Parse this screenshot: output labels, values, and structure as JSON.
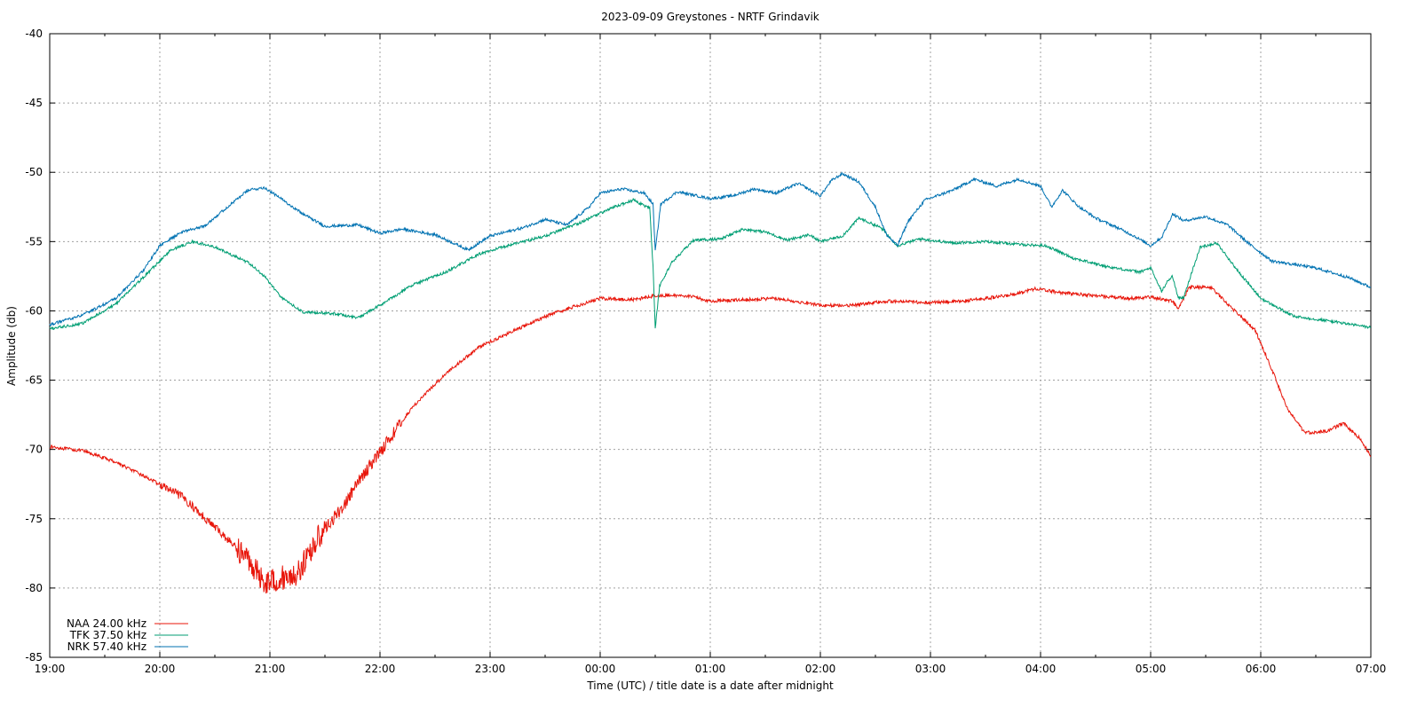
{
  "chart_data": {
    "type": "line",
    "title": "2023-09-09 Greystones - NRTF Grindavik",
    "xlabel": "Time (UTC) / title date is a date after midnight",
    "ylabel": "Amplitude (db)",
    "x_unit": "hours UTC",
    "xlim": [
      19,
      31
    ],
    "ylim": [
      -85,
      -40
    ],
    "x_ticks": [
      "19:00",
      "20:00",
      "21:00",
      "22:00",
      "23:00",
      "00:00",
      "01:00",
      "02:00",
      "03:00",
      "04:00",
      "05:00",
      "06:00",
      "07:00"
    ],
    "y_ticks": [
      "-40",
      "-45",
      "-50",
      "-55",
      "-60",
      "-65",
      "-70",
      "-75",
      "-80",
      "-85"
    ],
    "grid": true,
    "legend_position": "bottom-left",
    "series": [
      {
        "name": "NAA 24.00 kHz",
        "color": "#e8150a",
        "points": [
          [
            19.0,
            -69.8
          ],
          [
            19.3,
            -70.1
          ],
          [
            19.6,
            -70.9
          ],
          [
            19.9,
            -72.1
          ],
          [
            20.2,
            -73.4
          ],
          [
            20.5,
            -75.6
          ],
          [
            20.8,
            -77.9
          ],
          [
            20.95,
            -79.6
          ],
          [
            21.1,
            -79.3
          ],
          [
            21.25,
            -79.0
          ],
          [
            21.45,
            -76.2
          ],
          [
            21.65,
            -74.3
          ],
          [
            21.85,
            -71.8
          ],
          [
            22.05,
            -69.6
          ],
          [
            22.3,
            -66.9
          ],
          [
            22.6,
            -64.5
          ],
          [
            22.9,
            -62.6
          ],
          [
            23.2,
            -61.5
          ],
          [
            23.5,
            -60.4
          ],
          [
            23.8,
            -59.6
          ],
          [
            24.0,
            -59.1
          ],
          [
            24.3,
            -59.2
          ],
          [
            24.5,
            -58.9
          ],
          [
            24.8,
            -58.9
          ],
          [
            25.0,
            -59.3
          ],
          [
            25.3,
            -59.2
          ],
          [
            25.6,
            -59.1
          ],
          [
            26.0,
            -59.6
          ],
          [
            26.3,
            -59.6
          ],
          [
            26.6,
            -59.3
          ],
          [
            27.0,
            -59.4
          ],
          [
            27.3,
            -59.3
          ],
          [
            27.7,
            -58.9
          ],
          [
            27.95,
            -58.4
          ],
          [
            28.2,
            -58.7
          ],
          [
            28.5,
            -58.9
          ],
          [
            28.8,
            -59.1
          ],
          [
            29.0,
            -59.0
          ],
          [
            29.2,
            -59.3
          ],
          [
            29.25,
            -59.9
          ],
          [
            29.35,
            -58.3
          ],
          [
            29.55,
            -58.3
          ],
          [
            29.7,
            -59.5
          ],
          [
            29.95,
            -61.4
          ],
          [
            30.1,
            -64.2
          ],
          [
            30.25,
            -67.2
          ],
          [
            30.4,
            -68.8
          ],
          [
            30.6,
            -68.7
          ],
          [
            30.75,
            -68.1
          ],
          [
            30.9,
            -69.2
          ],
          [
            31.0,
            -70.5
          ]
        ]
      },
      {
        "name": "TFK 37.50 kHz",
        "color": "#009e73",
        "points": [
          [
            19.0,
            -61.3
          ],
          [
            19.3,
            -60.9
          ],
          [
            19.6,
            -59.5
          ],
          [
            19.9,
            -57.2
          ],
          [
            20.1,
            -55.6
          ],
          [
            20.3,
            -55.0
          ],
          [
            20.5,
            -55.4
          ],
          [
            20.8,
            -56.5
          ],
          [
            20.95,
            -57.5
          ],
          [
            21.1,
            -59.0
          ],
          [
            21.3,
            -60.1
          ],
          [
            21.6,
            -60.2
          ],
          [
            21.8,
            -60.5
          ],
          [
            22.0,
            -59.6
          ],
          [
            22.3,
            -58.1
          ],
          [
            22.6,
            -57.2
          ],
          [
            22.9,
            -55.9
          ],
          [
            23.2,
            -55.2
          ],
          [
            23.5,
            -54.6
          ],
          [
            23.8,
            -53.7
          ],
          [
            24.1,
            -52.6
          ],
          [
            24.3,
            -52.0
          ],
          [
            24.45,
            -52.6
          ],
          [
            24.48,
            -56.8
          ],
          [
            24.5,
            -61.3
          ],
          [
            24.54,
            -58.2
          ],
          [
            24.65,
            -56.5
          ],
          [
            24.85,
            -54.9
          ],
          [
            25.1,
            -54.8
          ],
          [
            25.3,
            -54.1
          ],
          [
            25.5,
            -54.3
          ],
          [
            25.7,
            -54.9
          ],
          [
            25.9,
            -54.5
          ],
          [
            26.0,
            -55.0
          ],
          [
            26.2,
            -54.6
          ],
          [
            26.35,
            -53.3
          ],
          [
            26.55,
            -54.0
          ],
          [
            26.7,
            -55.3
          ],
          [
            26.9,
            -54.8
          ],
          [
            27.2,
            -55.1
          ],
          [
            27.5,
            -55.0
          ],
          [
            27.8,
            -55.2
          ],
          [
            28.05,
            -55.3
          ],
          [
            28.3,
            -56.2
          ],
          [
            28.6,
            -56.8
          ],
          [
            28.9,
            -57.2
          ],
          [
            29.0,
            -56.9
          ],
          [
            29.1,
            -58.6
          ],
          [
            29.15,
            -57.9
          ],
          [
            29.2,
            -57.5
          ],
          [
            29.25,
            -59.1
          ],
          [
            29.3,
            -59.0
          ],
          [
            29.45,
            -55.4
          ],
          [
            29.6,
            -55.1
          ],
          [
            29.8,
            -57.2
          ],
          [
            30.0,
            -59.1
          ],
          [
            30.3,
            -60.4
          ],
          [
            30.6,
            -60.7
          ],
          [
            31.0,
            -61.2
          ]
        ]
      },
      {
        "name": "NRK 57.40 kHz",
        "color": "#0072b2",
        "points": [
          [
            19.0,
            -61.0
          ],
          [
            19.3,
            -60.3
          ],
          [
            19.6,
            -59.1
          ],
          [
            19.85,
            -57.1
          ],
          [
            20.0,
            -55.3
          ],
          [
            20.2,
            -54.3
          ],
          [
            20.4,
            -53.9
          ],
          [
            20.6,
            -52.6
          ],
          [
            20.8,
            -51.3
          ],
          [
            20.95,
            -51.1
          ],
          [
            21.1,
            -51.9
          ],
          [
            21.3,
            -53.0
          ],
          [
            21.5,
            -53.9
          ],
          [
            21.8,
            -53.8
          ],
          [
            22.0,
            -54.4
          ],
          [
            22.2,
            -54.1
          ],
          [
            22.5,
            -54.5
          ],
          [
            22.8,
            -55.6
          ],
          [
            23.0,
            -54.6
          ],
          [
            23.3,
            -54.0
          ],
          [
            23.5,
            -53.4
          ],
          [
            23.7,
            -53.8
          ],
          [
            23.9,
            -52.5
          ],
          [
            24.0,
            -51.5
          ],
          [
            24.2,
            -51.2
          ],
          [
            24.4,
            -51.5
          ],
          [
            24.48,
            -52.3
          ],
          [
            24.5,
            -55.7
          ],
          [
            24.55,
            -52.3
          ],
          [
            24.7,
            -51.4
          ],
          [
            25.0,
            -51.9
          ],
          [
            25.2,
            -51.7
          ],
          [
            25.4,
            -51.2
          ],
          [
            25.6,
            -51.5
          ],
          [
            25.8,
            -50.8
          ],
          [
            26.0,
            -51.7
          ],
          [
            26.1,
            -50.6
          ],
          [
            26.2,
            -50.1
          ],
          [
            26.35,
            -50.7
          ],
          [
            26.5,
            -52.5
          ],
          [
            26.6,
            -54.5
          ],
          [
            26.7,
            -55.3
          ],
          [
            26.8,
            -53.5
          ],
          [
            26.95,
            -52.0
          ],
          [
            27.2,
            -51.3
          ],
          [
            27.4,
            -50.5
          ],
          [
            27.6,
            -51.0
          ],
          [
            27.8,
            -50.5
          ],
          [
            28.0,
            -51.0
          ],
          [
            28.1,
            -52.5
          ],
          [
            28.2,
            -51.3
          ],
          [
            28.35,
            -52.5
          ],
          [
            28.5,
            -53.3
          ],
          [
            28.7,
            -54.0
          ],
          [
            28.85,
            -54.6
          ],
          [
            29.0,
            -55.3
          ],
          [
            29.1,
            -54.7
          ],
          [
            29.2,
            -53.0
          ],
          [
            29.3,
            -53.5
          ],
          [
            29.5,
            -53.2
          ],
          [
            29.7,
            -53.8
          ],
          [
            29.9,
            -55.2
          ],
          [
            30.1,
            -56.4
          ],
          [
            30.5,
            -56.9
          ],
          [
            30.8,
            -57.6
          ],
          [
            31.0,
            -58.3
          ]
        ]
      }
    ]
  }
}
